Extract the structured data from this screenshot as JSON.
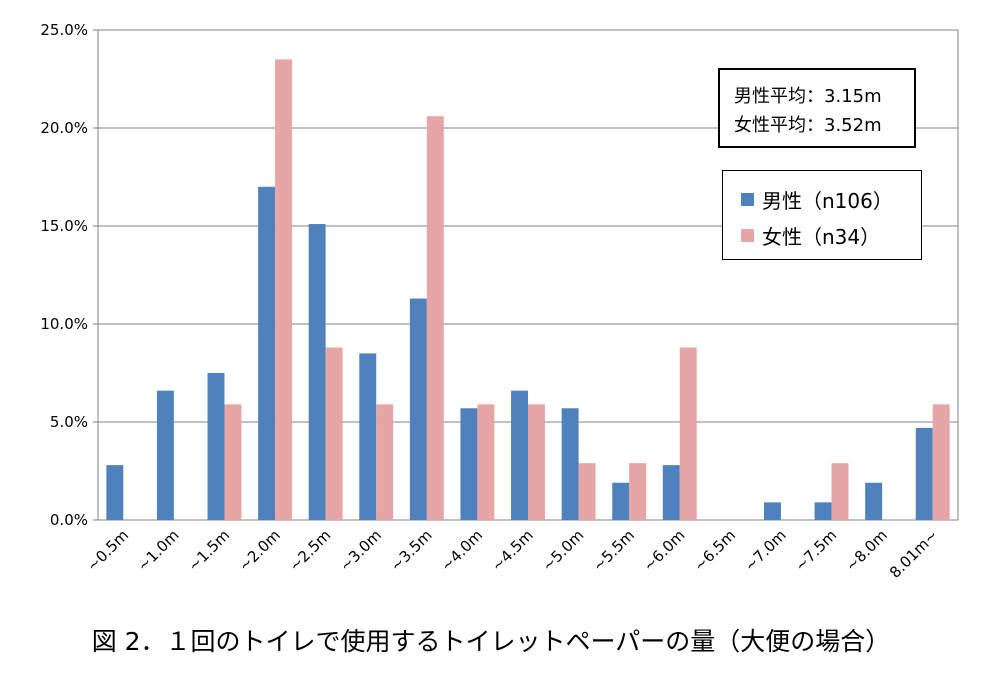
{
  "chart_data": {
    "type": "bar",
    "caption": "図 2．１回のトイレで使用するトイレットペーパーの量（大便の場合）",
    "categories": [
      "~0.5m",
      "~1.0m",
      "~1.5m",
      "~2.0m",
      "~2.5m",
      "~3.0m",
      "~3.5m",
      "~4.0m",
      "~4.5m",
      "~5.0m",
      "~5.5m",
      "~6.0m",
      "~6.5m",
      "~7.0m",
      "~7.5m",
      "~8.0m",
      "8.01m~"
    ],
    "series": [
      {
        "name": "男性（n106）",
        "color": "#4f81bd",
        "values": [
          2.8,
          6.6,
          7.5,
          17.0,
          15.1,
          8.5,
          11.3,
          5.7,
          6.6,
          5.7,
          1.9,
          2.8,
          0.0,
          0.9,
          0.9,
          1.9,
          4.7
        ]
      },
      {
        "name": "女性（n34）",
        "color": "#e6a6a6",
        "values": [
          0.0,
          0.0,
          5.9,
          23.5,
          8.8,
          5.9,
          20.6,
          5.9,
          5.9,
          2.9,
          2.9,
          8.8,
          0.0,
          0.0,
          2.9,
          0.0,
          5.9
        ]
      }
    ],
    "yticks": [
      "0.0%",
      "5.0%",
      "10.0%",
      "15.0%",
      "20.0%",
      "25.0%"
    ],
    "ylim": [
      0,
      25
    ],
    "grid": true,
    "legend": "right",
    "averages": [
      "男性平均：3.15m",
      "女性平均：3.52m"
    ]
  }
}
